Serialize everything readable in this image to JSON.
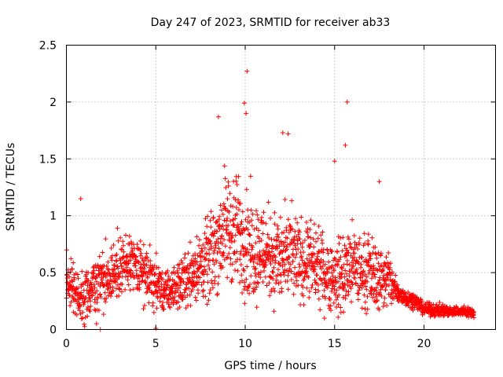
{
  "chart_data": {
    "type": "scatter",
    "title": "Day 247 of 2023, SRMTID for receiver ab33",
    "xlabel": "GPS time / hours",
    "ylabel": "SRMTID / TECUs",
    "xlim": [
      0,
      24
    ],
    "ylim": [
      0,
      2.5
    ],
    "xticks": [
      0,
      5,
      10,
      15,
      20
    ],
    "xtick_labels": [
      "0",
      "5",
      "10",
      "15",
      "20"
    ],
    "yticks": [
      0,
      0.5,
      1,
      1.5,
      2,
      2.5
    ],
    "ytick_labels": [
      "0",
      "0.5",
      "1",
      "1.5",
      "2",
      "2.5"
    ],
    "grid": true,
    "marker": "+",
    "color": "#ff0000",
    "series": [
      {
        "name": "ab33",
        "envelope": {
          "x": [
            0,
            0.3,
            0.7,
            1,
            1.5,
            2,
            3,
            4,
            5,
            5.5,
            6,
            6.5,
            7,
            7.5,
            8,
            8.5,
            9,
            9.5,
            10,
            10.5,
            11,
            11.5,
            12,
            12.5,
            13,
            13.5,
            14,
            14.5,
            15,
            15.5,
            16,
            16.5,
            17,
            17.5,
            18,
            18.5,
            19,
            19.5,
            20,
            20.5,
            21,
            21.5,
            22,
            22.8
          ],
          "center": [
            0.45,
            0.4,
            0.25,
            0.3,
            0.35,
            0.45,
            0.55,
            0.55,
            0.4,
            0.32,
            0.35,
            0.42,
            0.5,
            0.55,
            0.6,
            0.8,
            0.9,
            0.85,
            0.8,
            0.7,
            0.7,
            0.65,
            0.6,
            0.65,
            0.6,
            0.6,
            0.55,
            0.5,
            0.45,
            0.5,
            0.55,
            0.5,
            0.5,
            0.45,
            0.45,
            0.32,
            0.28,
            0.25,
            0.18,
            0.17,
            0.17,
            0.16,
            0.16,
            0.15
          ],
          "spread": [
            0.3,
            0.3,
            0.2,
            0.25,
            0.3,
            0.3,
            0.3,
            0.3,
            0.25,
            0.2,
            0.2,
            0.25,
            0.3,
            0.35,
            0.4,
            0.5,
            0.55,
            0.55,
            0.55,
            0.5,
            0.45,
            0.45,
            0.45,
            0.45,
            0.4,
            0.4,
            0.35,
            0.35,
            0.35,
            0.4,
            0.4,
            0.35,
            0.35,
            0.3,
            0.3,
            0.12,
            0.08,
            0.07,
            0.06,
            0.06,
            0.06,
            0.05,
            0.05,
            0.05
          ]
        },
        "point_count": 2200,
        "outliers": [
          {
            "x": 10.1,
            "y": 2.27
          },
          {
            "x": 9.95,
            "y": 1.99
          },
          {
            "x": 15.7,
            "y": 2.0
          },
          {
            "x": 8.5,
            "y": 1.87
          },
          {
            "x": 10.05,
            "y": 1.9
          },
          {
            "x": 15.6,
            "y": 1.62
          },
          {
            "x": 12.1,
            "y": 1.73
          },
          {
            "x": 12.4,
            "y": 1.72
          },
          {
            "x": 15.0,
            "y": 1.48
          },
          {
            "x": 17.5,
            "y": 1.3
          },
          {
            "x": 0.8,
            "y": 1.15
          },
          {
            "x": 5.0,
            "y": 0.01
          },
          {
            "x": 1.9,
            "y": 0.0
          }
        ]
      }
    ]
  }
}
